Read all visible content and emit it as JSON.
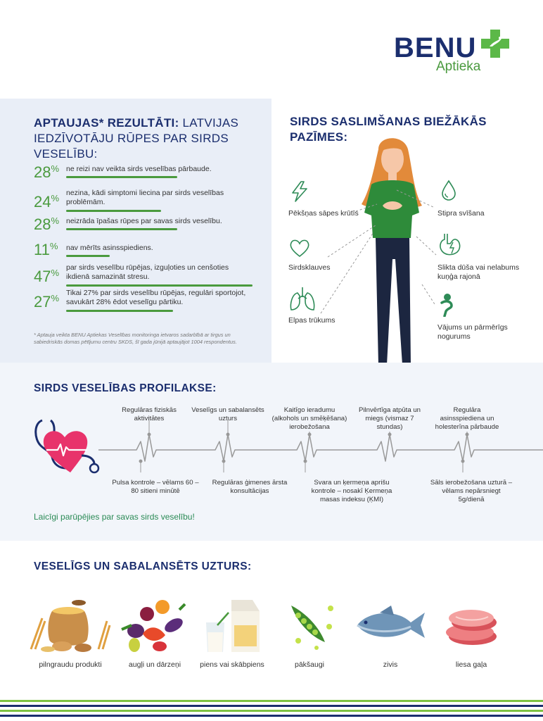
{
  "brand": {
    "name": "BENU",
    "sub": "Aptieka"
  },
  "survey": {
    "title_bold": "APTAUJAS* REZULTĀTI:",
    "title_rest": " LATVIJAS IEDZĪVOTĀJU RŪPES PAR SIRDS VESELĪBU:",
    "items": [
      {
        "pct": "28",
        "unit": "%",
        "text": "ne reizi nav veikta sirds veselības pārbaude.",
        "value": 0.28
      },
      {
        "pct": "24",
        "unit": "%",
        "text": "nezina, kādi simptomi liecina par sirds veselības problēmām.",
        "value": 0.24
      },
      {
        "pct": "28",
        "unit": "%",
        "text": "neizrāda īpašas rūpes par savas sirds veselību.",
        "value": 0.28
      },
      {
        "pct": "11",
        "unit": "%",
        "text": "nav mērīts asinsspiediens.",
        "value": 0.11
      },
      {
        "pct": "47",
        "unit": "%",
        "text": "par sirds veselību rūpējas, izguļoties un cenšoties ikdienā samazināt stresu.",
        "value": 0.47
      },
      {
        "pct": "27",
        "unit": "%",
        "text": "Tikai 27% par sirds veselību rūpējas, regulāri sportojot, savukārt 28% ēdot veselīgu pārtiku.",
        "value": 0.27
      }
    ],
    "note": "* Aptauja veikta BENU Aptiekas Veselības monitoringa ietvaros sadarbībā ar tirgus un sabiedriskās domas pētījumu centru SKDS, šī gada jūnijā aptaujājot 1004 respondentus."
  },
  "symptoms": {
    "title": "SIRDS SASLIMŠANAS BIEŽĀKĀS PAZĪMES:",
    "items": [
      {
        "label": "Pēkšņas sāpes krūtīs",
        "icon": "lightning-icon"
      },
      {
        "label": "Sirdsklauves",
        "icon": "heart-outline-icon"
      },
      {
        "label": "Elpas trūkums",
        "icon": "lungs-icon"
      },
      {
        "label": "Stipra svīšana",
        "icon": "drop-icon"
      },
      {
        "label": "Slikta dūša vai nelabums kuņģa rajonā",
        "icon": "stomach-icon"
      },
      {
        "label": "Vājums un pārmērīgs nogurums",
        "icon": "fatigue-icon"
      }
    ]
  },
  "prevention": {
    "title": "SIRDS VESELĪBAS PROFILAKSE:",
    "top": [
      "Regulāras fiziskās aktivitātes",
      "Veselīgs un sabalansēts uzturs",
      "Kaitīgo ieradumu (alkohols un smēķēšana) ierobežošana",
      "Pilnvērtīga atpūta un miegs (vismaz 7 stundas)",
      "Regulāra asinsspiediena un holesterīna pārbaude"
    ],
    "bottom": [
      "Pulsa kontrole – vēlams 60 – 80 sitieni minūtē",
      "Regulāras ģimenes ārsta konsultācijas",
      "Svara un ķermeņa aprišu kontrole – nosakī Ķermeņa masas indeksu (ĶMI)",
      "Sāls ierobežošana uzturā – vēlams nepārsniegt 5g/dienā"
    ],
    "cta": "Laicīgi parūpējies par savas sirds veselību!"
  },
  "diet": {
    "title": "VESELĪGS UN SABALANSĒTS UZTURS:",
    "items": [
      {
        "label": "pilngraudu produkti",
        "icon": "grain-sack-icon"
      },
      {
        "label": "augļi un dārzeņi",
        "icon": "fruits-vegetables-icon"
      },
      {
        "label": "piens vai skābpiens",
        "icon": "milk-icon"
      },
      {
        "label": "pākšaugi",
        "icon": "peas-icon"
      },
      {
        "label": "zivis",
        "icon": "fish-icon"
      },
      {
        "label": "liesa gaļa",
        "icon": "meat-icon"
      }
    ]
  },
  "colors": {
    "navy": "#1b2e6e",
    "green": "#4a9a3e",
    "heart": "#e8336b"
  }
}
